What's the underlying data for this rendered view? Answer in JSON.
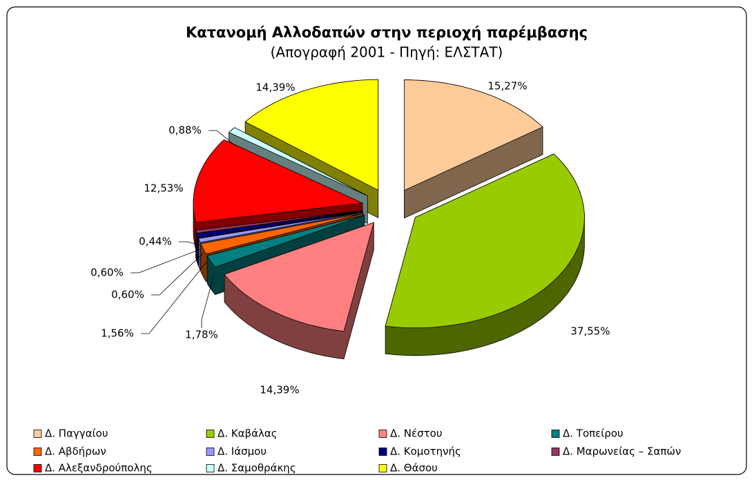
{
  "chart_data": {
    "type": "pie3d",
    "title": "Κατανομή Αλλοδαπών στην περιοχή παρέμβασης",
    "subtitle": "(Απογραφή 2001 - Πηγή: ΕΛΣΤΑΤ)",
    "categories": [
      "Δ. Παγγαίου",
      "Δ. Καβάλας",
      "Δ. Νέστου",
      "Δ. Τοπείρου",
      "Δ. Αβδήρων",
      "Δ. Ιάσμου",
      "Δ. Κομοτηνής",
      "Δ. Μαρωνείας – Σαπών",
      "Δ. Αλεξανδρούπολης",
      "Δ. Σαμοθράκης",
      "Δ. Θάσου"
    ],
    "values": [
      15.27,
      37.55,
      14.39,
      1.78,
      1.56,
      0.6,
      0.6,
      0.44,
      12.53,
      0.88,
      14.39
    ],
    "value_labels": [
      "15,27%",
      "37,55%",
      "14,39%",
      "1,78%",
      "1,56%",
      "0,60%",
      "0,60%",
      "0,44%",
      "12,53%",
      "0,88%",
      "14,39%"
    ],
    "colors": [
      "#ffcc99",
      "#99cc00",
      "#ff8080",
      "#008080",
      "#ff6600",
      "#9999ff",
      "#000080",
      "#993366",
      "#ff0000",
      "#ccffff",
      "#ffff00"
    ],
    "legend": "bottom"
  }
}
